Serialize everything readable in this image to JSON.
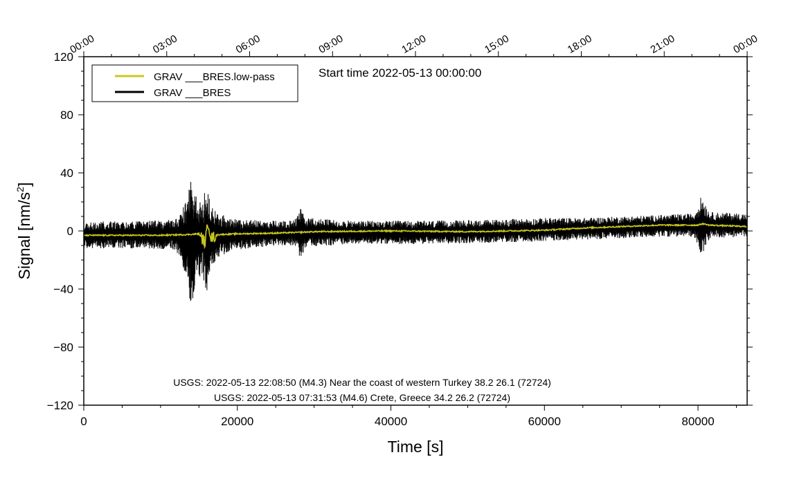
{
  "chart_data": {
    "type": "line",
    "xlabel": "Time [s]",
    "ylabel_main": "Signal [nm/s",
    "ylabel_sup": "2",
    "ylabel_tail": "]",
    "xlim": [
      0,
      86400
    ],
    "ylim": [
      -120,
      120
    ],
    "x_ticks": [
      0,
      20000,
      40000,
      60000,
      80000
    ],
    "x_tick_labels": [
      "0",
      "20000",
      "40000",
      "60000",
      "80000"
    ],
    "y_ticks": [
      -120,
      -80,
      -40,
      0,
      40,
      80,
      120
    ],
    "y_tick_labels": [
      "−120",
      "−80",
      "−40",
      "0",
      "40",
      "80",
      "120"
    ],
    "top_axis": {
      "ticks": [
        0,
        10800,
        21600,
        32400,
        43200,
        54000,
        64800,
        75600,
        86400
      ],
      "labels": [
        "00:00",
        "03:00",
        "06:00",
        "09:00",
        "12:00",
        "15:00",
        "18:00",
        "21:00",
        "00:00"
      ]
    },
    "start_time": "Start time 2022-05-13 00:00:00",
    "legend": {
      "placement": "top-left",
      "entries": [
        {
          "label": "GRAV ___BRES.low-pass",
          "color": "#c8c81e"
        },
        {
          "label": "GRAV ___BRES",
          "color": "#000000"
        }
      ]
    },
    "annotations": [
      "USGS: 2022-05-13 22:08:50 (M4.3) Near the coast of western Turkey 38.2 26.1 (72724)",
      "USGS: 2022-05-13 07:31:53 (M4.6) Crete, Greece 34.2 26.2 (72724)"
    ],
    "series": [
      {
        "name": "GRAV ___BRES",
        "color": "#000000",
        "kind": "envelope",
        "x": [
          0,
          4000,
          8000,
          12000,
          13500,
          14000,
          14500,
          15500,
          16000,
          16500,
          17500,
          20000,
          25000,
          27500,
          28200,
          29000,
          35000,
          45000,
          55000,
          60000,
          65000,
          70000,
          75000,
          79500,
          80500,
          81500,
          86400
        ],
        "upper": [
          6,
          7,
          7,
          8,
          22,
          45,
          25,
          20,
          34,
          18,
          12,
          8,
          7,
          8,
          17,
          9,
          7,
          7,
          8,
          9,
          9,
          10,
          11,
          12,
          25,
          13,
          12
        ],
        "lower": [
          -12,
          -12,
          -12,
          -13,
          -33,
          -60,
          -35,
          -30,
          -45,
          -25,
          -18,
          -13,
          -10,
          -10,
          -20,
          -11,
          -9,
          -9,
          -8,
          -7,
          -6,
          -5,
          -4,
          -4,
          -17,
          -5,
          -4
        ]
      },
      {
        "name": "GRAV ___BRES.low-pass",
        "color": "#c8c81e",
        "kind": "line",
        "x": [
          0,
          5000,
          10000,
          13500,
          15000,
          15800,
          16200,
          16600,
          17500,
          20000,
          25000,
          28000,
          30000,
          40000,
          50000,
          55000,
          60000,
          65000,
          70000,
          75000,
          80000,
          80600,
          81500,
          86400
        ],
        "y": [
          -3,
          -3,
          -3,
          -2.5,
          -2,
          -8,
          6,
          -5,
          -2.5,
          -2,
          -1.5,
          -1,
          -0.5,
          0,
          -0.5,
          0,
          0.5,
          2,
          3,
          4,
          4,
          5,
          4,
          3
        ]
      }
    ]
  }
}
